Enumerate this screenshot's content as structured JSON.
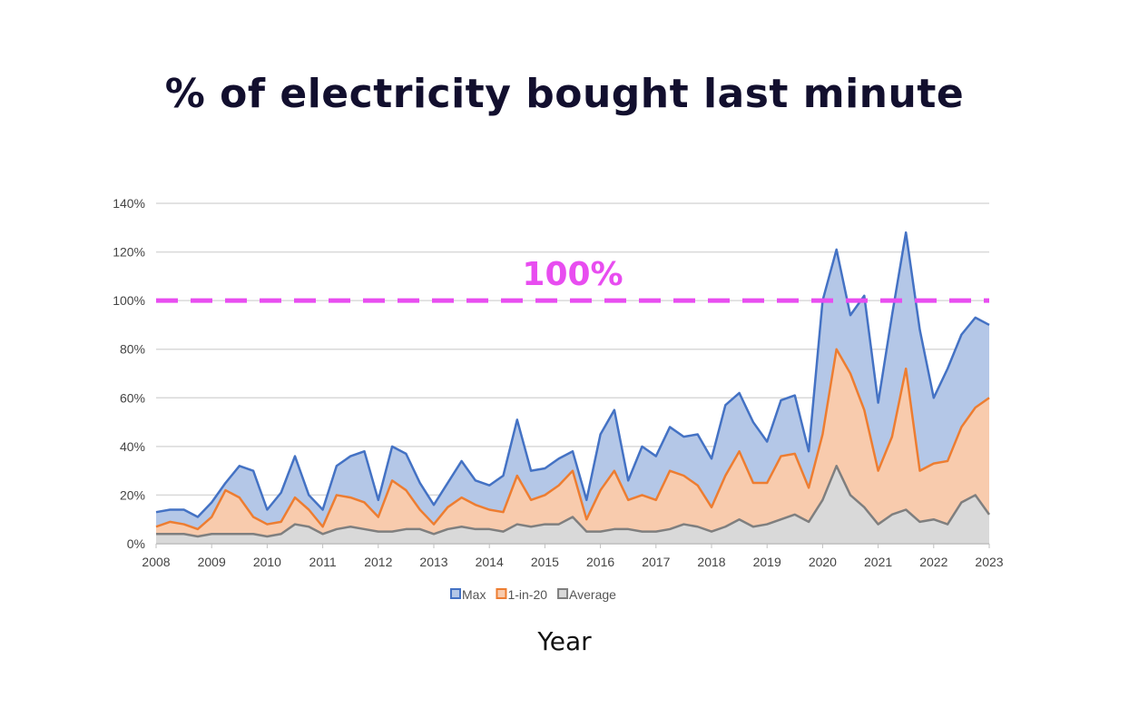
{
  "chart_data": {
    "type": "area",
    "title": "% of electricity bought last minute",
    "xlabel": "Year",
    "ylabel": "",
    "xlim": [
      2008,
      2023
    ],
    "ylim": [
      0,
      140
    ],
    "y_unit": "%",
    "grid": true,
    "legend_position": "bottom",
    "x_ticks": [
      "2008",
      "2009",
      "2010",
      "2011",
      "2012",
      "2013",
      "2014",
      "2015",
      "2016",
      "2017",
      "2018",
      "2019",
      "2020",
      "2021",
      "2022",
      "2023"
    ],
    "y_ticks": [
      "0%",
      "20%",
      "40%",
      "60%",
      "80%",
      "100%",
      "120%",
      "140%"
    ],
    "reference_line": {
      "value": 100,
      "label": "100%",
      "color": "#e84df0"
    },
    "x": [
      2008,
      2008.25,
      2008.5,
      2008.75,
      2009,
      2009.25,
      2009.5,
      2009.75,
      2010,
      2010.25,
      2010.5,
      2010.75,
      2011,
      2011.25,
      2011.5,
      2011.75,
      2012,
      2012.25,
      2012.5,
      2012.75,
      2013,
      2013.25,
      2013.5,
      2013.75,
      2014,
      2014.25,
      2014.5,
      2014.75,
      2015,
      2015.25,
      2015.5,
      2015.75,
      2016,
      2016.25,
      2016.5,
      2016.75,
      2017,
      2017.25,
      2017.5,
      2017.75,
      2018,
      2018.25,
      2018.5,
      2018.75,
      2019,
      2019.25,
      2019.5,
      2019.75,
      2020,
      2020.25,
      2020.5,
      2020.75,
      2021,
      2021.25,
      2021.5,
      2021.75,
      2022,
      2022.25,
      2022.5,
      2022.75,
      2023
    ],
    "series": [
      {
        "name": "Max",
        "line_color": "#4472c4",
        "fill_color": "#b4c7e7",
        "values": [
          13,
          14,
          14,
          11,
          17,
          25,
          32,
          30,
          14,
          21,
          36,
          20,
          14,
          32,
          36,
          38,
          18,
          40,
          37,
          25,
          16,
          25,
          34,
          26,
          24,
          28,
          51,
          30,
          31,
          35,
          38,
          18,
          45,
          55,
          26,
          40,
          36,
          48,
          44,
          45,
          35,
          57,
          62,
          50,
          42,
          59,
          61,
          38,
          100,
          121,
          94,
          102,
          58,
          94,
          128,
          88,
          60,
          72,
          86,
          93,
          90
        ]
      },
      {
        "name": "1-in-20",
        "line_color": "#ed7d31",
        "fill_color": "#f8cbad",
        "values": [
          7,
          9,
          8,
          6,
          11,
          22,
          19,
          11,
          8,
          9,
          19,
          14,
          7,
          20,
          19,
          17,
          11,
          26,
          22,
          14,
          8,
          15,
          19,
          16,
          14,
          13,
          28,
          18,
          20,
          24,
          30,
          10,
          22,
          30,
          18,
          20,
          18,
          30,
          28,
          24,
          15,
          28,
          38,
          25,
          25,
          36,
          37,
          23,
          45,
          80,
          70,
          55,
          30,
          44,
          72,
          30,
          33,
          34,
          48,
          56,
          60
        ]
      },
      {
        "name": "Average",
        "line_color": "#7f7f7f",
        "fill_color": "#d9d9d9",
        "values": [
          4,
          4,
          4,
          3,
          4,
          4,
          4,
          4,
          3,
          4,
          8,
          7,
          4,
          6,
          7,
          6,
          5,
          5,
          6,
          6,
          4,
          6,
          7,
          6,
          6,
          5,
          8,
          7,
          8,
          8,
          11,
          5,
          5,
          6,
          6,
          5,
          5,
          6,
          8,
          7,
          5,
          7,
          10,
          7,
          8,
          10,
          12,
          9,
          18,
          32,
          20,
          15,
          8,
          12,
          14,
          9,
          10,
          8,
          17,
          20,
          12
        ]
      }
    ]
  }
}
